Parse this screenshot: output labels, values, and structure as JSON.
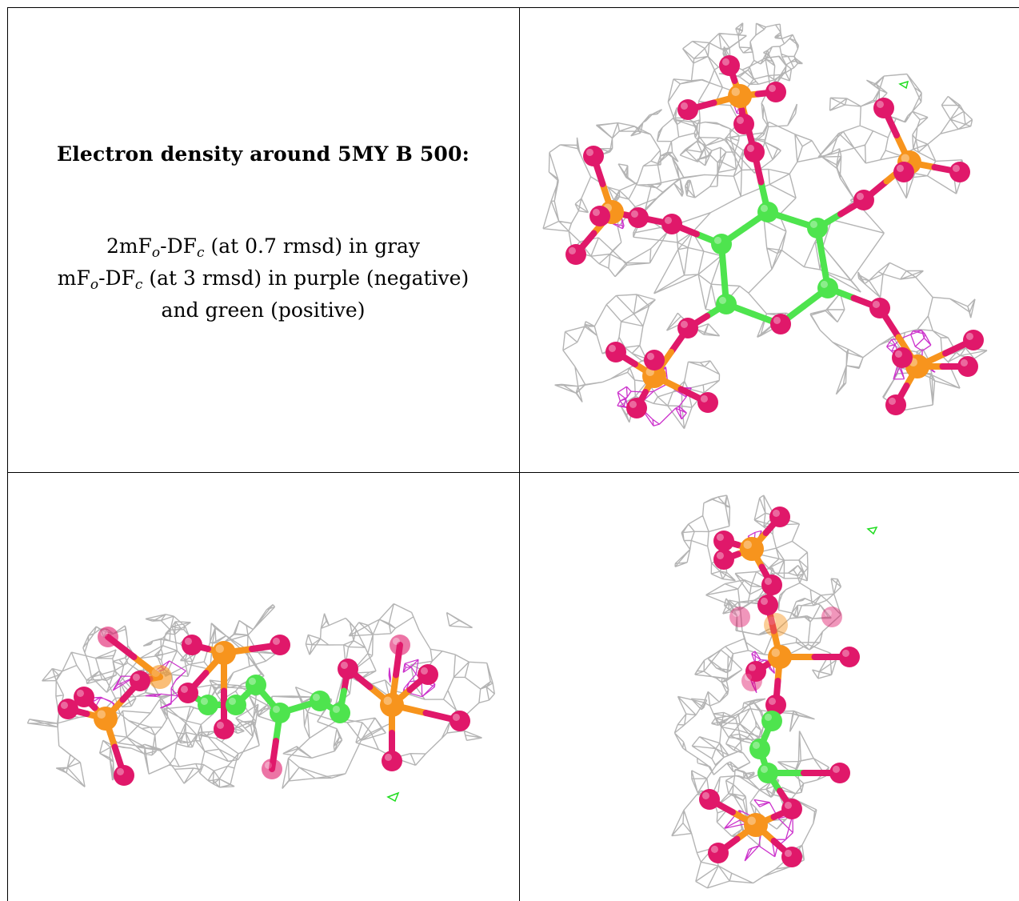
{
  "caption": {
    "title": "Electron density around 5MY B 500:",
    "line1": {
      "prefix": "2mF",
      "sub1": "o",
      "mid": "-DF",
      "sub2": "c",
      "suffix": " (at 0.7 rmsd) in gray"
    },
    "line2": {
      "prefix": "mF",
      "sub1": "o",
      "mid": "-DF",
      "sub2": "c",
      "suffix": " (at 3 rmsd) in purple (negative)"
    },
    "line3": "and green (positive)"
  },
  "colors": {
    "mesh_2fofc": "#b4b4b4",
    "mesh_negative": "#cc33cc",
    "mesh_positive": "#22dd22",
    "carbon": "#4ee44e",
    "oxygen": "#e0186a",
    "phosphorus": "#f7941d",
    "border": "#000000"
  },
  "views": [
    {
      "name": "top-view"
    },
    {
      "name": "side-view"
    },
    {
      "name": "end-view"
    }
  ]
}
